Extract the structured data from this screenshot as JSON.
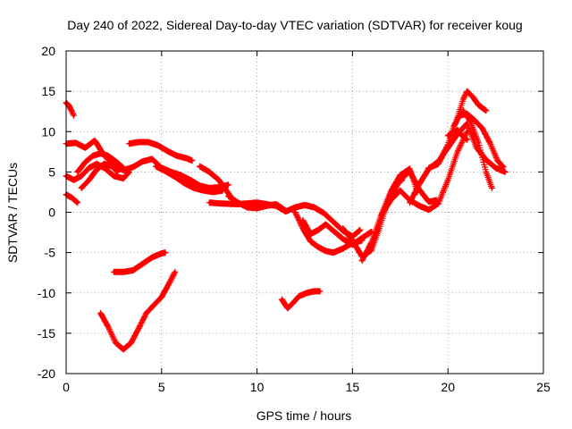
{
  "chart_data": {
    "type": "scatter",
    "title": "Day 240 of 2022, Sidereal Day-to-day VTEC variation (SDTVAR) for receiver koug",
    "xlabel": "GPS time / hours",
    "ylabel": "SDTVAR / TECUs",
    "xlim": [
      0,
      25
    ],
    "ylim": [
      -20,
      20
    ],
    "x_ticks": [
      0,
      5,
      10,
      15,
      20,
      25
    ],
    "y_ticks": [
      -20,
      -15,
      -10,
      -5,
      0,
      5,
      10,
      15,
      20
    ],
    "x_tick_labels": [
      "0",
      "5",
      "10",
      "15",
      "20",
      "25"
    ],
    "y_tick_labels": [
      "-20",
      "-15",
      "-10",
      "-5",
      "0",
      "5",
      "10",
      "15",
      "20"
    ],
    "grid": true,
    "marker": "+",
    "color": "#ff0000",
    "series": [
      {
        "name": "track-1",
        "x": [
          0.0,
          0.15,
          0.3,
          0.4
        ],
        "y": [
          13.6,
          13.2,
          12.5,
          12.0
        ]
      },
      {
        "name": "track-2",
        "x": [
          0.0,
          0.5,
          1.0,
          1.5,
          2.0,
          2.5,
          3.0,
          3.5,
          4.0,
          4.5,
          5.0,
          5.5,
          6.0,
          6.5,
          7.0,
          7.5,
          8.0,
          8.5
        ],
        "y": [
          8.5,
          8.6,
          8.0,
          8.9,
          7.0,
          6.0,
          5.2,
          5.6,
          6.3,
          6.6,
          5.5,
          5.0,
          4.6,
          4.0,
          3.3,
          3.0,
          3.1,
          3.4
        ]
      },
      {
        "name": "track-3",
        "x": [
          0.0,
          0.4,
          0.8,
          1.2,
          1.6,
          2.0,
          2.5,
          3.0,
          3.3
        ],
        "y": [
          4.5,
          4.0,
          4.5,
          5.5,
          6.0,
          5.5,
          4.5,
          4.2,
          5.0
        ]
      },
      {
        "name": "track-4",
        "x": [
          0.0,
          0.3,
          0.6
        ],
        "y": [
          2.2,
          1.8,
          1.2
        ]
      },
      {
        "name": "track-5",
        "x": [
          0.8,
          1.2,
          1.6,
          2.0,
          2.4,
          2.7
        ],
        "y": [
          3.0,
          4.0,
          5.3,
          6.0,
          5.7,
          5.0
        ]
      },
      {
        "name": "track-6",
        "x": [
          0.6,
          1.0,
          1.4,
          1.8,
          2.2,
          2.6,
          3.0
        ],
        "y": [
          5.0,
          6.2,
          7.0,
          7.3,
          7.0,
          6.3,
          5.5
        ]
      },
      {
        "name": "track-7",
        "x": [
          3.3,
          3.8,
          4.3,
          4.8,
          5.3,
          5.8,
          6.3,
          6.6
        ],
        "y": [
          8.5,
          8.7,
          8.7,
          8.3,
          7.6,
          7.0,
          6.7,
          6.4
        ]
      },
      {
        "name": "track-8",
        "x": [
          4.7,
          5.2,
          5.7,
          6.2,
          6.7,
          7.2,
          7.7,
          8.2
        ],
        "y": [
          5.7,
          5.1,
          4.4,
          3.6,
          3.0,
          2.7,
          2.5,
          2.7
        ]
      },
      {
        "name": "track-9",
        "x": [
          7.0,
          7.5,
          8.0,
          8.3,
          8.6
        ],
        "y": [
          5.7,
          5.0,
          4.0,
          3.0,
          2.0
        ]
      },
      {
        "name": "track-10",
        "x": [
          7.5,
          8.0,
          9.0,
          9.5,
          10.0,
          10.5,
          11.0,
          11.5,
          12.0,
          12.5,
          13.0,
          13.5,
          14.0,
          14.5,
          15.0,
          15.4
        ],
        "y": [
          1.2,
          1.1,
          1.0,
          1.1,
          1.2,
          1.0,
          0.8,
          0.1,
          0.6,
          0.9,
          0.6,
          -0.1,
          -1.2,
          -2.3,
          -3.0,
          -2.2
        ]
      },
      {
        "name": "track-11",
        "x": [
          8.5,
          9.0,
          9.5,
          10.0,
          10.5,
          11.0,
          11.5
        ],
        "y": [
          2.0,
          1.2,
          0.6,
          0.5,
          0.8,
          1.0,
          0.2
        ]
      },
      {
        "name": "track-12",
        "x": [
          12.0,
          12.4,
          12.8,
          13.2,
          13.6,
          14.0,
          14.5,
          15.0,
          15.5
        ],
        "y": [
          0.0,
          -2.0,
          -3.6,
          -4.3,
          -4.8,
          -5.0,
          -4.5,
          -3.8,
          -3.5
        ]
      },
      {
        "name": "track-13",
        "x": [
          12.4,
          12.8,
          13.2,
          13.6,
          14.0,
          14.5,
          15.0,
          15.5,
          16.0
        ],
        "y": [
          -1.0,
          -2.7,
          -2.2,
          -1.5,
          -2.3,
          -3.3,
          -4.0,
          -3.2,
          -2.4
        ]
      },
      {
        "name": "track-14",
        "x": [
          14.5,
          15.0,
          15.5,
          16.0,
          16.4,
          16.8,
          17.2,
          17.6
        ],
        "y": [
          -2.0,
          -3.5,
          -5.5,
          -4.7,
          -2.0,
          1.0,
          3.4,
          4.0
        ]
      },
      {
        "name": "track-15",
        "x": [
          15.5,
          16.0,
          16.5,
          17.0,
          17.5,
          18.0,
          18.4
        ],
        "y": [
          -6.0,
          -3.7,
          -0.4,
          2.5,
          4.6,
          5.4,
          2.5
        ]
      },
      {
        "name": "track-16",
        "x": [
          16.5,
          17.0,
          17.5,
          18.0,
          18.5,
          19.0,
          19.5,
          20.0,
          20.5,
          21.0
        ],
        "y": [
          -0.4,
          1.5,
          2.7,
          1.5,
          0.8,
          0.3,
          1.1,
          4.0,
          7.5,
          10.0
        ]
      },
      {
        "name": "track-17",
        "x": [
          17.0,
          17.5,
          18.0,
          18.5,
          19.0,
          19.4
        ],
        "y": [
          2.0,
          4.0,
          5.1,
          2.8,
          1.3,
          1.5
        ]
      },
      {
        "name": "track-18",
        "x": [
          18.0,
          18.5,
          19.0,
          19.5,
          20.0,
          20.5,
          21.0,
          21.5,
          22.0,
          22.5,
          23.0
        ],
        "y": [
          1.2,
          3.5,
          5.4,
          6.3,
          8.0,
          9.7,
          11.0,
          8.0,
          6.5,
          5.5,
          5.0
        ]
      },
      {
        "name": "track-19",
        "x": [
          19.0,
          19.5,
          20.0,
          20.3,
          20.6,
          21.0,
          21.4,
          21.8,
          22.2,
          22.6,
          22.9
        ],
        "y": [
          5.5,
          6.0,
          8.4,
          10.6,
          12.0,
          12.2,
          11.4,
          10.4,
          8.6,
          6.4,
          5.6
        ]
      },
      {
        "name": "track-20",
        "x": [
          20.4,
          20.8,
          21.0,
          21.3,
          21.6,
          22.0
        ],
        "y": [
          11.0,
          14.0,
          15.0,
          14.3,
          13.3,
          12.6
        ]
      },
      {
        "name": "track-21",
        "x": [
          20.8,
          21.2,
          21.6,
          22.0,
          22.3
        ],
        "y": [
          12.6,
          11.2,
          8.6,
          5.0,
          3.0
        ]
      },
      {
        "name": "track-22",
        "x": [
          20.0,
          20.5,
          20.7,
          21.0
        ],
        "y": [
          9.5,
          10.2,
          9.6,
          9.0
        ]
      },
      {
        "name": "track-23",
        "x": [
          2.5,
          3.0,
          3.5,
          4.0,
          4.5,
          5.0,
          5.2
        ],
        "y": [
          -7.4,
          -7.4,
          -7.2,
          -6.4,
          -5.6,
          -5.1,
          -5.0
        ]
      },
      {
        "name": "track-24",
        "x": [
          1.8,
          2.2,
          2.6,
          3.0,
          3.4,
          3.8,
          4.2,
          4.6,
          5.0,
          5.4,
          5.7
        ],
        "y": [
          -12.5,
          -14.2,
          -16.2,
          -17.0,
          -16.2,
          -14.4,
          -12.5,
          -11.5,
          -10.5,
          -8.8,
          -7.4
        ]
      },
      {
        "name": "track-25",
        "x": [
          11.3,
          11.6,
          11.9,
          12.2,
          12.6,
          13.0,
          13.3
        ],
        "y": [
          -10.8,
          -11.9,
          -11.2,
          -10.4,
          -10.0,
          -9.8,
          -9.8
        ]
      }
    ]
  }
}
